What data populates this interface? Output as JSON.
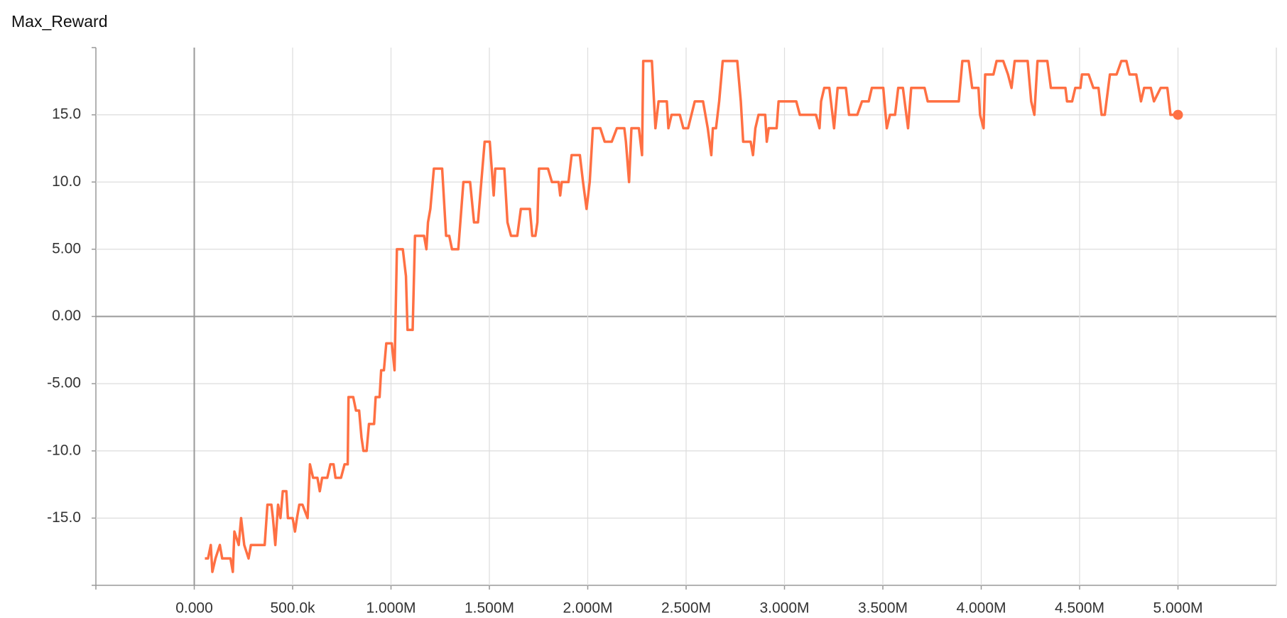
{
  "chart_data": {
    "type": "line",
    "title": "Max_Reward",
    "x": [
      54000,
      70000,
      84000,
      92000,
      108000,
      130000,
      142000,
      184000,
      196000,
      204000,
      226000,
      238000,
      254000,
      276000,
      288000,
      358000,
      372000,
      392000,
      400000,
      412000,
      426000,
      438000,
      450000,
      468000,
      476000,
      500000,
      512000,
      522000,
      534000,
      550000,
      576000,
      588000,
      604000,
      626000,
      638000,
      650000,
      676000,
      692000,
      708000,
      718000,
      746000,
      764000,
      780000,
      784000,
      808000,
      822000,
      838000,
      850000,
      860000,
      876000,
      888000,
      914000,
      922000,
      942000,
      950000,
      964000,
      976000,
      1004000,
      1018000,
      1030000,
      1060000,
      1076000,
      1084000,
      1110000,
      1122000,
      1168000,
      1180000,
      1188000,
      1200000,
      1218000,
      1260000,
      1280000,
      1296000,
      1310000,
      1342000,
      1368000,
      1402000,
      1422000,
      1442000,
      1476000,
      1502000,
      1522000,
      1530000,
      1576000,
      1592000,
      1610000,
      1642000,
      1660000,
      1706000,
      1718000,
      1734000,
      1744000,
      1752000,
      1798000,
      1818000,
      1852000,
      1860000,
      1868000,
      1902000,
      1918000,
      1960000,
      1976000,
      1994000,
      2010000,
      2026000,
      2064000,
      2086000,
      2122000,
      2148000,
      2186000,
      2194000,
      2210000,
      2222000,
      2260000,
      2276000,
      2282000,
      2326000,
      2344000,
      2360000,
      2402000,
      2410000,
      2426000,
      2468000,
      2486000,
      2510000,
      2544000,
      2586000,
      2610000,
      2628000,
      2636000,
      2652000,
      2668000,
      2686000,
      2760000,
      2778000,
      2790000,
      2828000,
      2840000,
      2852000,
      2868000,
      2902000,
      2910000,
      2920000,
      2960000,
      2970000,
      3060000,
      3078000,
      3160000,
      3178000,
      3186000,
      3202000,
      3228000,
      3236000,
      3252000,
      3270000,
      3312000,
      3328000,
      3370000,
      3394000,
      3428000,
      3444000,
      3502000,
      3520000,
      3536000,
      3562000,
      3578000,
      3602000,
      3628000,
      3644000,
      3712000,
      3728000,
      3886000,
      3904000,
      3936000,
      3954000,
      3986000,
      3994000,
      4012000,
      4020000,
      4062000,
      4078000,
      4112000,
      4136000,
      4154000,
      4170000,
      4236000,
      4254000,
      4270000,
      4286000,
      4336000,
      4354000,
      4428000,
      4436000,
      4462000,
      4478000,
      4504000,
      4512000,
      4546000,
      4570000,
      4596000,
      4612000,
      4628000,
      4654000,
      4688000,
      4712000,
      4738000,
      4754000,
      4788000,
      4812000,
      4828000,
      4862000,
      4878000,
      4912000,
      4946000,
      4962000,
      5000000
    ],
    "series": [
      {
        "color": "#ff7043",
        "values": [
          -18,
          -18,
          -17,
          -19,
          -18,
          -17,
          -18,
          -18,
          -19,
          -16,
          -17,
          -15,
          -17,
          -18,
          -17,
          -17,
          -14,
          -14,
          -15,
          -17,
          -14,
          -15,
          -13,
          -13,
          -15,
          -15,
          -16,
          -15,
          -14,
          -14,
          -15,
          -11,
          -12,
          -12,
          -13,
          -12,
          -12,
          -11,
          -11,
          -12,
          -12,
          -11,
          -11,
          -6,
          -6,
          -7,
          -7,
          -9,
          -10,
          -10,
          -8,
          -8,
          -6,
          -6,
          -4,
          -4,
          -2,
          -2,
          -4,
          5,
          5,
          3,
          -1,
          -1,
          6,
          6,
          5,
          7,
          8,
          11,
          11,
          6,
          6,
          5,
          5,
          10,
          10,
          7,
          7,
          13,
          13,
          9,
          11,
          11,
          7,
          6,
          6,
          8,
          8,
          6,
          6,
          7,
          11,
          11,
          10,
          10,
          9,
          10,
          10,
          12,
          12,
          10,
          8,
          10,
          14,
          14,
          13,
          13,
          14,
          14,
          13,
          10,
          14,
          14,
          12,
          19,
          19,
          14,
          16,
          16,
          14,
          15,
          15,
          14,
          14,
          16,
          16,
          14,
          12,
          14,
          14,
          16,
          19,
          19,
          16,
          13,
          13,
          12,
          14,
          15,
          15,
          13,
          14,
          14,
          16,
          16,
          15,
          15,
          14,
          16,
          17,
          17,
          16,
          14,
          17,
          17,
          15,
          15,
          16,
          16,
          17,
          17,
          14,
          15,
          15,
          17,
          17,
          14,
          17,
          17,
          16,
          16,
          19,
          19,
          17,
          17,
          15,
          14,
          18,
          18,
          19,
          19,
          18,
          17,
          19,
          19,
          16,
          15,
          19,
          19,
          17,
          17,
          16,
          16,
          17,
          17,
          18,
          18,
          17,
          17,
          15,
          15,
          18,
          18,
          19,
          19,
          18,
          18,
          16,
          17,
          17,
          16,
          17,
          17,
          15,
          15
        ]
      }
    ],
    "xlim": [
      -500000,
      5500000
    ],
    "xticks": [
      {
        "value": 0,
        "label": "0.000"
      },
      {
        "value": 500000,
        "label": "500.0k"
      },
      {
        "value": 1000000,
        "label": "1.000M"
      },
      {
        "value": 1500000,
        "label": "1.500M"
      },
      {
        "value": 2000000,
        "label": "2.000M"
      },
      {
        "value": 2500000,
        "label": "2.500M"
      },
      {
        "value": 3000000,
        "label": "3.000M"
      },
      {
        "value": 3500000,
        "label": "3.500M"
      },
      {
        "value": 4000000,
        "label": "4.000M"
      },
      {
        "value": 4500000,
        "label": "4.500M"
      },
      {
        "value": 5000000,
        "label": "5.000M"
      }
    ],
    "ylim": [
      -20,
      20
    ],
    "yticks": [
      {
        "value": -15,
        "label": "-15.0"
      },
      {
        "value": -10,
        "label": "-10.0"
      },
      {
        "value": -5,
        "label": "-5.00"
      },
      {
        "value": 0,
        "label": "0.00"
      },
      {
        "value": 5,
        "label": "5.00"
      },
      {
        "value": 10,
        "label": "10.0"
      },
      {
        "value": 15,
        "label": "15.0"
      }
    ],
    "grid": true
  }
}
